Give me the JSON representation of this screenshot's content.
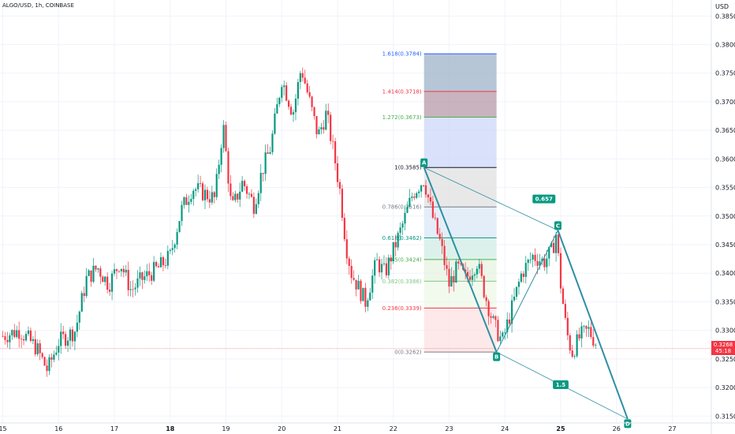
{
  "header": {
    "symbol": "ALGO/USD, 1h, COINBASE",
    "currency": "USD"
  },
  "price_tag": {
    "price": "0.3268",
    "countdown": "45:18"
  },
  "chart_data": {
    "type": "candlestick",
    "title": "ALGO/USD, 1h, COINBASE",
    "ylabel": "USD",
    "ylim": [
      0.3138,
      0.3878
    ],
    "xlim": [
      14.95,
      27.7
    ],
    "x_ticks": [
      {
        "v": 15,
        "label": "15",
        "bold": false
      },
      {
        "v": 16,
        "label": "16",
        "bold": false
      },
      {
        "v": 17,
        "label": "17",
        "bold": false
      },
      {
        "v": 18,
        "label": "18",
        "bold": true
      },
      {
        "v": 19,
        "label": "19",
        "bold": false
      },
      {
        "v": 20,
        "label": "20",
        "bold": false
      },
      {
        "v": 21,
        "label": "21",
        "bold": false
      },
      {
        "v": 22,
        "label": "22",
        "bold": false
      },
      {
        "v": 23,
        "label": "23",
        "bold": false
      },
      {
        "v": 24,
        "label": "24",
        "bold": false
      },
      {
        "v": 25,
        "label": "25",
        "bold": true
      },
      {
        "v": 26,
        "label": "26",
        "bold": false
      },
      {
        "v": 27,
        "label": "27",
        "bold": false
      }
    ],
    "y_ticks": [
      "0.3850",
      "0.3800",
      "0.3750",
      "0.3700",
      "0.3650",
      "0.3600",
      "0.3550",
      "0.3500",
      "0.3450",
      "0.3400",
      "0.3350",
      "0.3300",
      "0.3250",
      "0.3200",
      "0.3150"
    ],
    "last_price": 0.3268,
    "price_path": [
      [
        15.0,
        0.329
      ],
      [
        15.3,
        0.33
      ],
      [
        15.6,
        0.327
      ],
      [
        15.8,
        0.323
      ],
      [
        16.0,
        0.328
      ],
      [
        16.3,
        0.33
      ],
      [
        16.5,
        0.339
      ],
      [
        16.7,
        0.341
      ],
      [
        16.9,
        0.338
      ],
      [
        17.1,
        0.342
      ],
      [
        17.3,
        0.337
      ],
      [
        17.5,
        0.339
      ],
      [
        17.8,
        0.341
      ],
      [
        18.0,
        0.343
      ],
      [
        18.2,
        0.351
      ],
      [
        18.4,
        0.355
      ],
      [
        18.6,
        0.354
      ],
      [
        18.8,
        0.353
      ],
      [
        18.95,
        0.366
      ],
      [
        19.1,
        0.351
      ],
      [
        19.3,
        0.356
      ],
      [
        19.5,
        0.352
      ],
      [
        19.65,
        0.358
      ],
      [
        19.8,
        0.362
      ],
      [
        20.0,
        0.374
      ],
      [
        20.2,
        0.368
      ],
      [
        20.35,
        0.376
      ],
      [
        20.5,
        0.37
      ],
      [
        20.65,
        0.364
      ],
      [
        20.8,
        0.368
      ],
      [
        20.95,
        0.36
      ],
      [
        21.05,
        0.354
      ],
      [
        21.15,
        0.345
      ],
      [
        21.25,
        0.34
      ],
      [
        21.35,
        0.338
      ],
      [
        21.5,
        0.335
      ],
      [
        21.7,
        0.342
      ],
      [
        21.85,
        0.34
      ],
      [
        22.0,
        0.344
      ],
      [
        22.15,
        0.348
      ],
      [
        22.35,
        0.354
      ],
      [
        22.55,
        0.3565
      ],
      [
        22.7,
        0.35
      ],
      [
        22.85,
        0.345
      ],
      [
        23.0,
        0.338
      ],
      [
        23.15,
        0.341
      ],
      [
        23.3,
        0.339
      ],
      [
        23.5,
        0.342
      ],
      [
        23.65,
        0.336
      ],
      [
        23.8,
        0.331
      ],
      [
        23.95,
        0.328
      ],
      [
        24.1,
        0.333
      ],
      [
        24.3,
        0.34
      ],
      [
        24.5,
        0.343
      ],
      [
        24.7,
        0.342
      ],
      [
        24.85,
        0.344
      ],
      [
        24.92,
        0.347
      ],
      [
        25.0,
        0.338
      ],
      [
        25.1,
        0.33
      ],
      [
        25.2,
        0.326
      ],
      [
        25.35,
        0.329
      ],
      [
        25.5,
        0.33
      ],
      [
        25.65,
        0.3275
      ]
    ],
    "fib": {
      "x_start": 22.55,
      "x_end": 23.85,
      "levels": [
        {
          "ratio": "1.618",
          "price": 0.3784,
          "label": "1.618(0.3784)",
          "color": "#2962ff",
          "fill": "#9db3c9"
        },
        {
          "ratio": "1.414",
          "price": 0.3718,
          "label": "1.414(0.3718)",
          "color": "#f23645",
          "fill": "#b79aa8"
        },
        {
          "ratio": "1.272",
          "price": 0.3673,
          "label": "1.272(0.3673)",
          "color": "#4caf50",
          "fill": "#ccd8f8"
        },
        {
          "ratio": "1",
          "price": 0.3585,
          "label": "1(0.3585)",
          "color": "#131722",
          "fill": "#e0e0e0"
        },
        {
          "ratio": "0.786",
          "price": 0.3516,
          "label": "0.786(0.3516)",
          "color": "#787b86",
          "fill": "#dbe8f6"
        },
        {
          "ratio": "0.618",
          "price": 0.3462,
          "label": "0.618(0.3462)",
          "color": "#089981",
          "fill": "#d2ece6"
        },
        {
          "ratio": "0.5",
          "price": 0.3424,
          "label": "0.5(0.3424)",
          "color": "#4caf50",
          "fill": "#e6f3e2"
        },
        {
          "ratio": "0.382",
          "price": 0.3386,
          "label": "0.382(0.3386)",
          "color": "#81c784",
          "fill": "#eef8e8"
        },
        {
          "ratio": "0.236",
          "price": 0.3339,
          "label": "0.236(0.3339)",
          "color": "#f23645",
          "fill": "#fce1e1"
        },
        {
          "ratio": "0",
          "price": 0.3262,
          "label": "0(0.3262)",
          "color": "#787b86",
          "fill": ""
        }
      ]
    },
    "abcd": {
      "points": [
        {
          "name": "A",
          "x": 22.55,
          "y": 0.3585
        },
        {
          "name": "B",
          "x": 23.85,
          "y": 0.3262
        },
        {
          "name": "C",
          "x": 24.95,
          "y": 0.3475
        },
        {
          "name": "D",
          "x": 26.2,
          "y": 0.3145
        }
      ],
      "ratios": [
        {
          "label": "0.657",
          "x": 24.7,
          "y": 0.353
        },
        {
          "label": "1.5",
          "x": 25.0,
          "y": 0.3205
        }
      ],
      "color": "#2e8fa3",
      "marker_color": "#089981"
    }
  }
}
